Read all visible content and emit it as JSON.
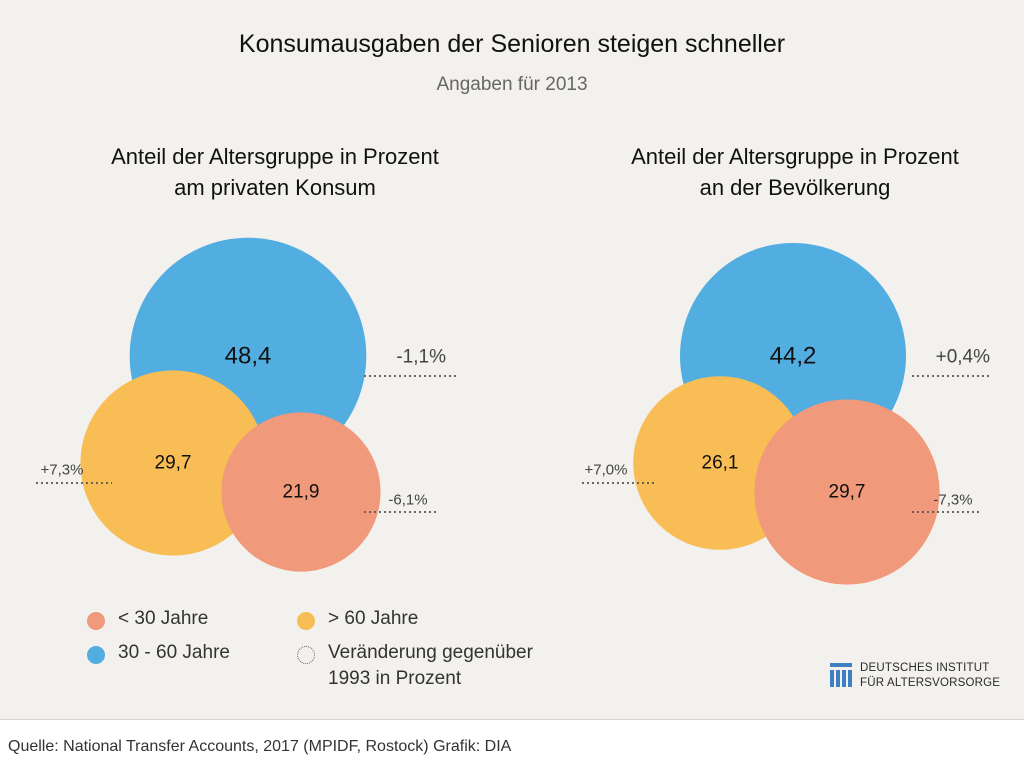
{
  "title": "Konsumausgaben der Senioren steigen schneller",
  "subtitle": "Angaben für 2013",
  "colors": {
    "age_30_60": "#52ade1",
    "age_over_60": "#f8bd55",
    "age_under_30": "#f0997b",
    "background": "#f3f1ee"
  },
  "chart_data": [
    {
      "type": "bubble",
      "title_line1": "Anteil der Altersgruppe in Prozent",
      "title_line2": "am privaten Konsum",
      "groups": [
        {
          "key": "age_30_60",
          "name": "30 - 60 Jahre",
          "value": 48.4,
          "label": "48,4",
          "change": "-1,1%"
        },
        {
          "key": "age_over_60",
          "name": "> 60 Jahre",
          "value": 29.7,
          "label": "29,7",
          "change": "+7,3%"
        },
        {
          "key": "age_under_30",
          "name": "< 30 Jahre",
          "value": 21.9,
          "label": "21,9",
          "change": "-6,1%"
        }
      ]
    },
    {
      "type": "bubble",
      "title_line1": "Anteil der Altersgruppe in Prozent",
      "title_line2": "an der Bevölkerung",
      "groups": [
        {
          "key": "age_30_60",
          "name": "30 - 60 Jahre",
          "value": 44.2,
          "label": "44,2",
          "change": "+0,4%"
        },
        {
          "key": "age_over_60",
          "name": "> 60 Jahre",
          "value": 26.1,
          "label": "26,1",
          "change": "+7,0%"
        },
        {
          "key": "age_under_30",
          "name": "< 30 Jahre",
          "value": 29.7,
          "label": "29,7",
          "change": "-7,3%"
        }
      ]
    }
  ],
  "legend": {
    "under_30": "< 30 Jahre",
    "over_60": "> 60 Jahre",
    "age_30_60": "30 - 60 Jahre",
    "change_line1": "Veränderung gegenüber",
    "change_line2": "1993 in Prozent"
  },
  "logo": {
    "line1": "DEUTSCHES INSTITUT",
    "line2": "FÜR ALTERSVORSORGE"
  },
  "footer": "Quelle: National Transfer Accounts, 2017 (MPIDF, Rostock)  Grafik: DIA"
}
